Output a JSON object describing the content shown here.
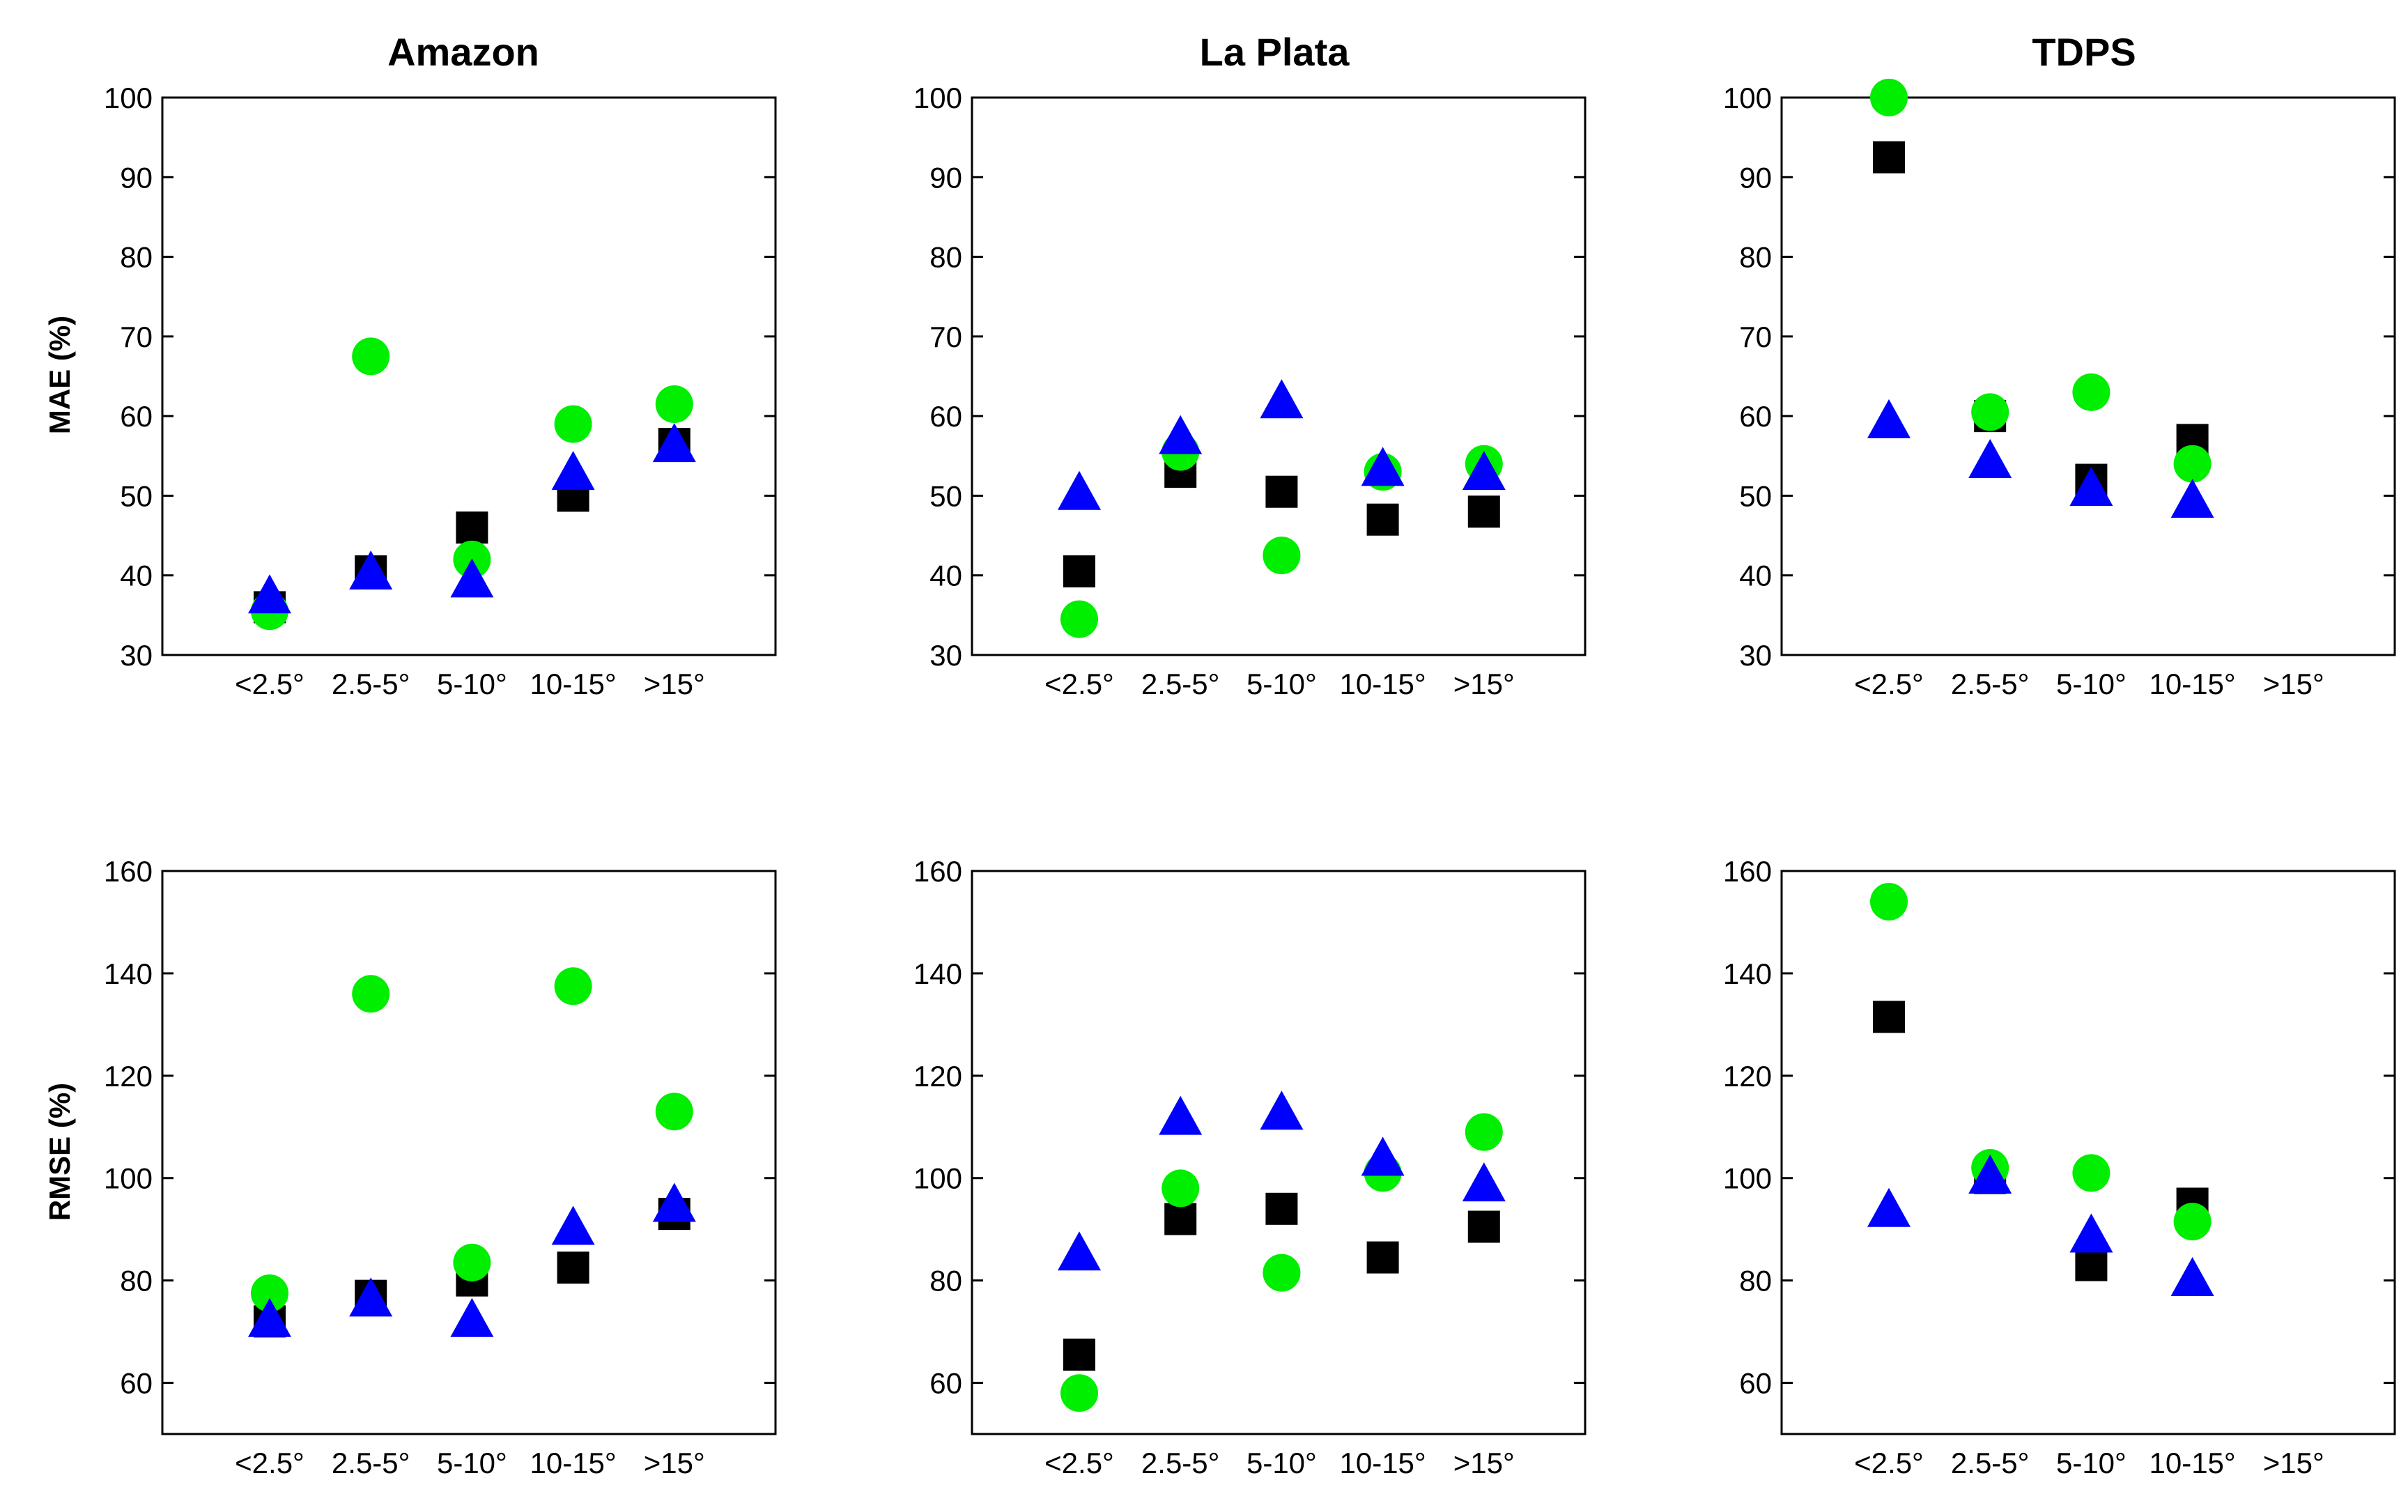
{
  "figure": {
    "colors": {
      "series_a": "#000000",
      "series_b": "#00ee00",
      "series_c": "#0000ff"
    },
    "markers": {
      "series_a": "square",
      "series_b": "circle",
      "series_c": "triangle"
    }
  },
  "chart_data": [
    {
      "type": "scatter",
      "title": "Amazon",
      "ylabel": "MAE (%)",
      "xlabel": "",
      "ylim": [
        30,
        100
      ],
      "yticks": [
        30,
        40,
        50,
        60,
        70,
        80,
        90,
        100
      ],
      "categories": [
        "<2.5°",
        "2.5-5°",
        "5-10°",
        "10-15°",
        ">15°"
      ],
      "series": [
        {
          "name": "series_a",
          "marker": "square",
          "color": "#000000",
          "values": [
            36,
            40.5,
            46,
            50,
            56.5
          ]
        },
        {
          "name": "series_b",
          "marker": "circle",
          "color": "#00ee00",
          "values": [
            35.5,
            67.5,
            42,
            59,
            61.5
          ]
        },
        {
          "name": "series_c",
          "marker": "triangle",
          "color": "#0000ff",
          "values": [
            37.5,
            40.5,
            39.5,
            53,
            56.5
          ]
        }
      ]
    },
    {
      "type": "scatter",
      "title": "La Plata",
      "ylabel": "",
      "xlabel": "",
      "ylim": [
        30,
        100
      ],
      "yticks": [
        30,
        40,
        50,
        60,
        70,
        80,
        90,
        100
      ],
      "categories": [
        "<2.5°",
        "2.5-5°",
        "5-10°",
        "10-15°",
        ">15°"
      ],
      "series": [
        {
          "name": "series_a",
          "marker": "square",
          "color": "#000000",
          "values": [
            40.5,
            53,
            50.5,
            47,
            48
          ]
        },
        {
          "name": "series_b",
          "marker": "circle",
          "color": "#00ee00",
          "values": [
            34.5,
            55.5,
            42.5,
            53,
            54
          ]
        },
        {
          "name": "series_c",
          "marker": "triangle",
          "color": "#0000ff",
          "values": [
            50.5,
            57.5,
            62,
            53.5,
            53
          ]
        }
      ]
    },
    {
      "type": "scatter",
      "title": "TDPS",
      "ylabel": "",
      "xlabel": "",
      "ylim": [
        30,
        100
      ],
      "yticks": [
        30,
        40,
        50,
        60,
        70,
        80,
        90,
        100
      ],
      "categories": [
        "<2.5°",
        "2.5-5°",
        "5-10°",
        "10-15°",
        ">15°"
      ],
      "series": [
        {
          "name": "series_a",
          "marker": "square",
          "color": "#000000",
          "values": [
            92.5,
            60,
            52,
            57,
            null
          ]
        },
        {
          "name": "series_b",
          "marker": "circle",
          "color": "#00ee00",
          "values": [
            100,
            60.5,
            63,
            54,
            null
          ]
        },
        {
          "name": "series_c",
          "marker": "triangle",
          "color": "#0000ff",
          "values": [
            59.5,
            54.5,
            51,
            49.5,
            null
          ]
        }
      ]
    },
    {
      "type": "scatter",
      "title": "",
      "ylabel": "RMSE (%)",
      "xlabel": "",
      "ylim": [
        50,
        160
      ],
      "yticks": [
        60,
        80,
        100,
        120,
        140,
        160
      ],
      "categories": [
        "<2.5°",
        "2.5-5°",
        "5-10°",
        "10-15°",
        ">15°"
      ],
      "series": [
        {
          "name": "series_a",
          "marker": "square",
          "color": "#000000",
          "values": [
            72,
            77,
            80,
            82.5,
            93
          ]
        },
        {
          "name": "series_b",
          "marker": "circle",
          "color": "#00ee00",
          "values": [
            77.5,
            136,
            83.5,
            137.5,
            113
          ]
        },
        {
          "name": "series_c",
          "marker": "triangle",
          "color": "#0000ff",
          "values": [
            72.5,
            76.5,
            72.5,
            90.5,
            95
          ]
        }
      ]
    },
    {
      "type": "scatter",
      "title": "",
      "ylabel": "",
      "xlabel": "",
      "ylim": [
        50,
        160
      ],
      "yticks": [
        60,
        80,
        100,
        120,
        140,
        160
      ],
      "categories": [
        "<2.5°",
        "2.5-5°",
        "5-10°",
        "10-15°",
        ">15°"
      ],
      "series": [
        {
          "name": "series_a",
          "marker": "square",
          "color": "#000000",
          "values": [
            65.5,
            92,
            94,
            84.5,
            90.5
          ]
        },
        {
          "name": "series_b",
          "marker": "circle",
          "color": "#00ee00",
          "values": [
            58,
            98,
            81.5,
            101,
            109
          ]
        },
        {
          "name": "series_c",
          "marker": "triangle",
          "color": "#0000ff",
          "values": [
            85.5,
            112,
            113,
            104,
            99
          ]
        }
      ]
    },
    {
      "type": "scatter",
      "title": "",
      "ylabel": "",
      "xlabel": "",
      "ylim": [
        50,
        160
      ],
      "yticks": [
        60,
        80,
        100,
        120,
        140,
        160
      ],
      "categories": [
        "<2.5°",
        "2.5-5°",
        "5-10°",
        "10-15°",
        ">15°"
      ],
      "series": [
        {
          "name": "series_a",
          "marker": "square",
          "color": "#000000",
          "values": [
            131.5,
            100,
            83,
            95,
            null
          ]
        },
        {
          "name": "series_b",
          "marker": "circle",
          "color": "#00ee00",
          "values": [
            154,
            102,
            101,
            91.5,
            null
          ]
        },
        {
          "name": "series_c",
          "marker": "triangle",
          "color": "#0000ff",
          "values": [
            94,
            100.5,
            89,
            80.5,
            null
          ]
        }
      ]
    }
  ]
}
